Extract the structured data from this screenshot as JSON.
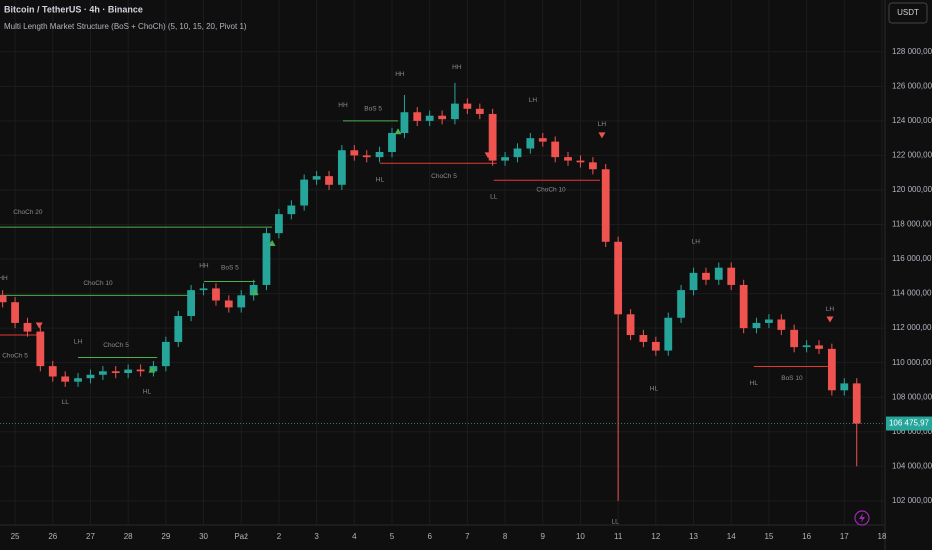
{
  "chart_data": {
    "type": "candlestick",
    "title": "Bitcoin / TetherUS · 4h · Binance",
    "subtitle": "Multi Length Market Structure (BoS + ChoCh) (5, 10, 15, 20, Pivot 1)",
    "currency_button": "USDT",
    "up_color": "#26a69a",
    "down_color": "#ef5350",
    "grid": true,
    "x": [
      -0.33,
      0,
      0.33,
      0.67,
      1,
      1.33,
      1.67,
      2,
      2.33,
      2.67,
      3,
      3.33,
      3.67,
      4,
      4.33,
      4.67,
      5,
      5.33,
      5.67,
      6,
      6.33,
      6.67,
      7,
      7.33,
      7.67,
      8,
      8.33,
      8.67,
      9,
      9.33,
      9.67,
      10,
      10.33,
      10.67,
      11,
      11.33,
      11.67,
      12,
      12.33,
      12.67,
      13,
      13.33,
      13.67,
      14,
      14.33,
      14.67,
      15,
      15.33,
      15.67,
      16,
      16.33,
      16.67,
      17,
      17.33,
      17.67,
      18,
      18.33,
      18.67,
      19,
      19.33,
      19.67,
      20,
      20.33,
      20.67,
      21,
      21.33,
      21.67,
      22,
      22.33
    ],
    "open": [
      113900,
      113500,
      112300,
      111800,
      109800,
      109200,
      108900,
      109100,
      109300,
      109500,
      109400,
      109600,
      109500,
      109800,
      111200,
      112700,
      114200,
      114300,
      113600,
      113200,
      113900,
      114500,
      117500,
      118600,
      119100,
      120600,
      120800,
      120300,
      122300,
      122000,
      121900,
      122200,
      123300,
      124500,
      124000,
      124300,
      124100,
      125000,
      124700,
      124400,
      121700,
      121900,
      122400,
      123000,
      122800,
      121900,
      121700,
      121600,
      121200,
      117000,
      112800,
      111600,
      111200,
      110700,
      112600,
      114200,
      115200,
      114800,
      115500,
      114500,
      112000,
      112300,
      112500,
      111900,
      110900,
      111000,
      110800,
      108400,
      108800
    ],
    "high": [
      114200,
      113800,
      112600,
      112100,
      110100,
      109500,
      109400,
      109600,
      109800,
      109800,
      109900,
      109900,
      110100,
      111500,
      113000,
      114500,
      114600,
      114600,
      113900,
      114200,
      114800,
      117800,
      118900,
      119400,
      120900,
      121100,
      121100,
      122600,
      122600,
      122300,
      122500,
      123600,
      125500,
      124800,
      124600,
      124600,
      126200,
      125300,
      125000,
      124700,
      122200,
      122700,
      123300,
      123300,
      123100,
      122200,
      122000,
      121900,
      121500,
      117300,
      113100,
      111900,
      111500,
      112900,
      114500,
      115500,
      115500,
      115800,
      115800,
      114800,
      112600,
      112800,
      112800,
      112200,
      111300,
      111300,
      111100,
      109100,
      109100
    ],
    "low": [
      113200,
      112000,
      111500,
      109500,
      108900,
      108600,
      108600,
      108800,
      109000,
      109100,
      109100,
      109200,
      109200,
      109500,
      110900,
      112400,
      113900,
      113300,
      112900,
      112900,
      113600,
      114200,
      117200,
      118300,
      118800,
      120300,
      120000,
      120000,
      121700,
      121600,
      121600,
      121900,
      123000,
      123700,
      123700,
      123800,
      123800,
      124400,
      124100,
      121400,
      121400,
      121600,
      122100,
      122500,
      121600,
      121400,
      121300,
      120900,
      116700,
      102000,
      111300,
      110900,
      110400,
      110400,
      112300,
      113900,
      114500,
      114500,
      114200,
      111700,
      111700,
      112000,
      111600,
      110600,
      110600,
      110500,
      108100,
      108100,
      104000
    ],
    "close": [
      113500,
      112300,
      111800,
      109800,
      109200,
      108900,
      109100,
      109300,
      109500,
      109400,
      109600,
      109500,
      109800,
      111200,
      112700,
      114200,
      114300,
      113600,
      113200,
      113900,
      114500,
      117500,
      118600,
      119100,
      120600,
      120800,
      120300,
      122300,
      122000,
      121900,
      122200,
      123300,
      124500,
      124000,
      124300,
      124100,
      125000,
      124700,
      124400,
      121700,
      121900,
      122400,
      123000,
      122800,
      121900,
      121700,
      121600,
      121200,
      117000,
      112800,
      111600,
      111200,
      110700,
      112600,
      114200,
      115200,
      114800,
      115500,
      114500,
      112000,
      112300,
      112500,
      111900,
      110900,
      111000,
      110800,
      108400,
      108800,
      106475.97
    ],
    "last_price_label": "106 475,97",
    "xlim": [
      -0.4,
      23.08
    ],
    "ylim": [
      100600,
      131000
    ],
    "xticks": [
      {
        "value": 0,
        "label": "25"
      },
      {
        "value": 1,
        "label": "26"
      },
      {
        "value": 2,
        "label": "27"
      },
      {
        "value": 3,
        "label": "28"
      },
      {
        "value": 4,
        "label": "29"
      },
      {
        "value": 5,
        "label": "30"
      },
      {
        "value": 6,
        "label": "Paź"
      },
      {
        "value": 7,
        "label": "2"
      },
      {
        "value": 8,
        "label": "3"
      },
      {
        "value": 9,
        "label": "4"
      },
      {
        "value": 10,
        "label": "5"
      },
      {
        "value": 11,
        "label": "6"
      },
      {
        "value": 12,
        "label": "7"
      },
      {
        "value": 13,
        "label": "8"
      },
      {
        "value": 14,
        "label": "9"
      },
      {
        "value": 15,
        "label": "10"
      },
      {
        "value": 16,
        "label": "11"
      },
      {
        "value": 17,
        "label": "12"
      },
      {
        "value": 18,
        "label": "13"
      },
      {
        "value": 19,
        "label": "14"
      },
      {
        "value": 20,
        "label": "15"
      },
      {
        "value": 21,
        "label": "16"
      },
      {
        "value": 22,
        "label": "17"
      },
      {
        "value": 23,
        "label": "18"
      }
    ],
    "yticks": [
      {
        "value": 102000,
        "label": "102 000,00"
      },
      {
        "value": 104000,
        "label": "104 000,00"
      },
      {
        "value": 106000,
        "label": "106 000,00"
      },
      {
        "value": 108000,
        "label": "108 000,00"
      },
      {
        "value": 110000,
        "label": "110 000,00"
      },
      {
        "value": 112000,
        "label": "112 000,00"
      },
      {
        "value": 114000,
        "label": "114 000,00"
      },
      {
        "value": 116000,
        "label": "116 000,00"
      },
      {
        "value": 118000,
        "label": "118 000,00"
      },
      {
        "value": 120000,
        "label": "120 000,00"
      },
      {
        "value": 122000,
        "label": "122 000,00"
      },
      {
        "value": 124000,
        "label": "124 000,00"
      },
      {
        "value": 126000,
        "label": "126 000,00"
      },
      {
        "value": 128000,
        "label": "128 000,00"
      }
    ],
    "levels": [
      {
        "y": 117850,
        "x": [
          -0.4,
          6.82
        ],
        "color": "#4caf50"
      },
      {
        "y": 113900,
        "x": [
          -0.4,
          4.59
        ],
        "color": "#4caf50"
      },
      {
        "y": 114700,
        "x": [
          5.01,
          6.37
        ],
        "color": "#4caf50"
      },
      {
        "y": 111600,
        "x": [
          -0.4,
          0.66
        ],
        "color": "#e53935"
      },
      {
        "y": 110300,
        "x": [
          1.67,
          3.77
        ],
        "color": "#4caf50"
      },
      {
        "y": 124000,
        "x": [
          8.7,
          10.16
        ],
        "color": "#4caf50"
      },
      {
        "y": 121550,
        "x": [
          9.68,
          12.78
        ],
        "color": "#e53935"
      },
      {
        "y": 120560,
        "x": [
          12.7,
          15.52
        ],
        "color": "#e53935"
      },
      {
        "y": 109780,
        "x": [
          19.6,
          21.56
        ],
        "color": "#e53935"
      }
    ],
    "signals_up": {
      "x": [
        6.82,
        10.16,
        6.37,
        3.63
      ],
      "y": [
        116930,
        123400,
        114100,
        109600
      ],
      "color": "#4caf50"
    },
    "signals_down": {
      "x": [
        0.64,
        12.55,
        15.57,
        21.62
      ],
      "y": [
        112150,
        122000,
        123160,
        112500
      ],
      "color": "#ef5350"
    },
    "annotations": [
      {
        "text": "HH",
        "x": 10.21,
        "y": 126700
      },
      {
        "text": "HH",
        "x": 11.72,
        "y": 127100
      },
      {
        "text": "HH",
        "x": 8.7,
        "y": 124900
      },
      {
        "text": "BoS 5",
        "x": 9.5,
        "y": 124700
      },
      {
        "text": "LH",
        "x": 13.74,
        "y": 125200
      },
      {
        "text": "LH",
        "x": 15.57,
        "y": 123800
      },
      {
        "text": "HL",
        "x": 9.68,
        "y": 120600
      },
      {
        "text": "ChoCh 5",
        "x": 11.38,
        "y": 120800
      },
      {
        "text": "LL",
        "x": 12.7,
        "y": 119600
      },
      {
        "text": "ChoCh 10",
        "x": 14.22,
        "y": 120000
      },
      {
        "text": "ChoCh 20",
        "x": 0.34,
        "y": 118700
      },
      {
        "text": "HH",
        "x": 5.01,
        "y": 115600
      },
      {
        "text": "BoS 5",
        "x": 5.7,
        "y": 115500
      },
      {
        "text": "ChoCh 10",
        "x": 2.2,
        "y": 114600
      },
      {
        "text": "HH",
        "x": -0.32,
        "y": 114900
      },
      {
        "text": "ChoCh 5",
        "x": 0,
        "y": 110400
      },
      {
        "text": "LH",
        "x": 1.67,
        "y": 111200
      },
      {
        "text": "ChoCh 5",
        "x": 2.68,
        "y": 111000
      },
      {
        "text": "HL",
        "x": 3.5,
        "y": 108300
      },
      {
        "text": "LL",
        "x": 1.33,
        "y": 107700
      },
      {
        "text": "LH",
        "x": 18.06,
        "y": 117000
      },
      {
        "text": "HL",
        "x": 16.95,
        "y": 108500
      },
      {
        "text": "HL",
        "x": 19.6,
        "y": 108800
      },
      {
        "text": "BoS 10",
        "x": 20.61,
        "y": 109100
      },
      {
        "text": "LH",
        "x": 21.62,
        "y": 113100
      },
      {
        "text": "LL",
        "x": 15.92,
        "y": 100800
      }
    ]
  }
}
